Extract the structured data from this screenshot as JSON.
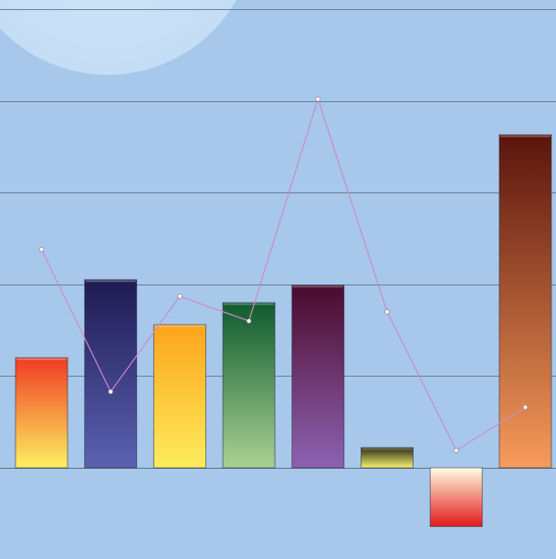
{
  "chart_data": {
    "type": "bar",
    "title": "",
    "xlabel": "",
    "ylabel": "",
    "ylim": [
      -64,
      500
    ],
    "grid": true,
    "legend": "none",
    "background": "#a7c8ea",
    "categories": [
      "",
      "",
      "",
      "",
      "",
      "",
      "",
      ""
    ],
    "series": [
      {
        "kind": "bar",
        "values": [
          120,
          205,
          156,
          180,
          199,
          22,
          -64,
          363
        ],
        "colors": [
          [
            "#ef3b22",
            "#fdf061"
          ],
          [
            "#1e1a52",
            "#5c62b2"
          ],
          [
            "#fda41b",
            "#fdec5c"
          ],
          [
            "#0f5a2e",
            "#a8d292"
          ],
          [
            "#4b0a2c",
            "#8d62b2"
          ],
          [
            "#2b2a14",
            "#f7f16f"
          ],
          [
            "#fffde0",
            "#e31a1a"
          ],
          [
            "#5a140c",
            "#f79b5a"
          ]
        ]
      },
      {
        "kind": "line",
        "values": [
          238,
          83,
          187,
          160,
          402,
          170,
          19,
          66
        ],
        "color": "#c98bc8"
      }
    ]
  }
}
